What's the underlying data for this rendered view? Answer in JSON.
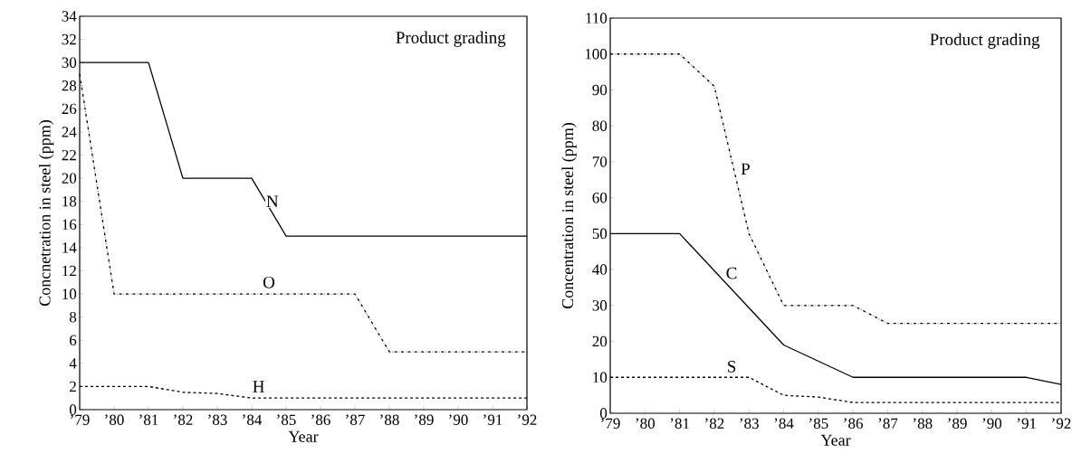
{
  "chart_data": [
    {
      "type": "line",
      "xlabel": "Year",
      "ylabel": "Concnetration in steel (ppm)",
      "xlim": [
        1979,
        1992
      ],
      "ylim": [
        0,
        34
      ],
      "xticks": [
        {
          "value": 1979,
          "label": "’79"
        },
        {
          "value": 1980,
          "label": "’80"
        },
        {
          "value": 1981,
          "label": "’81"
        },
        {
          "value": 1982,
          "label": "’82"
        },
        {
          "value": 1983,
          "label": "’83"
        },
        {
          "value": 1984,
          "label": "’84"
        },
        {
          "value": 1985,
          "label": "’85"
        },
        {
          "value": 1986,
          "label": "’86"
        },
        {
          "value": 1987,
          "label": "’87"
        },
        {
          "value": 1988,
          "label": "’88"
        },
        {
          "value": 1989,
          "label": "’89"
        },
        {
          "value": 1990,
          "label": "’90"
        },
        {
          "value": 1991,
          "label": "’91"
        },
        {
          "value": 1992,
          "label": "’92"
        }
      ],
      "yticks": [
        0,
        2,
        4,
        6,
        8,
        10,
        12,
        14,
        16,
        18,
        20,
        22,
        24,
        26,
        28,
        30,
        32,
        34
      ],
      "annotations": [
        "Product grading",
        {
          "text": "N",
          "x": 1984.6,
          "y": 18
        },
        {
          "text": "O",
          "x": 1984.5,
          "y": 11
        },
        {
          "text": "H",
          "x": 1984.2,
          "y": 2
        }
      ],
      "series": [
        {
          "color": "#000000",
          "line_style": "solid",
          "x": [
            1979,
            1981,
            1982,
            1984,
            1985,
            1992
          ],
          "values": [
            30,
            30,
            20,
            20,
            15,
            15
          ]
        },
        {
          "color": "#000000",
          "line_style": "dashed",
          "x": [
            1979,
            1980,
            1987,
            1988,
            1992
          ],
          "values": [
            29,
            10,
            10,
            5,
            5
          ]
        },
        {
          "color": "#000000",
          "line_style": "dotted",
          "x": [
            1979,
            1981,
            1982,
            1983,
            1984,
            1992
          ],
          "values": [
            2,
            2,
            1.5,
            1.4,
            1,
            1
          ]
        }
      ]
    },
    {
      "type": "line",
      "xlabel": "Year",
      "ylabel": "Concentration in steel (ppm)",
      "xlim": [
        1979,
        1992
      ],
      "ylim": [
        0,
        110
      ],
      "xticks": [
        {
          "value": 1979,
          "label": "’79"
        },
        {
          "value": 1980,
          "label": "’80"
        },
        {
          "value": 1981,
          "label": "’81"
        },
        {
          "value": 1982,
          "label": "’82"
        },
        {
          "value": 1983,
          "label": "’83"
        },
        {
          "value": 1984,
          "label": "’84"
        },
        {
          "value": 1985,
          "label": "’85"
        },
        {
          "value": 1986,
          "label": "’86"
        },
        {
          "value": 1987,
          "label": "’87"
        },
        {
          "value": 1988,
          "label": "’88"
        },
        {
          "value": 1989,
          "label": "’89"
        },
        {
          "value": 1990,
          "label": "’90"
        },
        {
          "value": 1991,
          "label": "’91"
        },
        {
          "value": 1992,
          "label": "’92"
        }
      ],
      "yticks": [
        0,
        10,
        20,
        30,
        40,
        50,
        60,
        70,
        80,
        90,
        100,
        110
      ],
      "annotations": [
        "Product grading",
        {
          "text": "P",
          "x": 1982.9,
          "y": 68
        },
        {
          "text": "C",
          "x": 1982.5,
          "y": 39
        },
        {
          "text": "S",
          "x": 1982.5,
          "y": 13
        }
      ],
      "series": [
        {
          "color": "#000000",
          "line_style": "dashed",
          "x": [
            1979,
            1981,
            1982,
            1983,
            1984,
            1986,
            1987,
            1992
          ],
          "values": [
            100,
            100,
            91,
            50,
            30,
            30,
            25,
            25
          ]
        },
        {
          "color": "#000000",
          "line_style": "solid",
          "x": [
            1979,
            1981,
            1984,
            1986,
            1991,
            1992
          ],
          "values": [
            50,
            50,
            19,
            10,
            10,
            8
          ]
        },
        {
          "color": "#000000",
          "line_style": "dotted",
          "x": [
            1979,
            1983,
            1984,
            1985,
            1986,
            1992
          ],
          "values": [
            10,
            10,
            5,
            4.5,
            3,
            3
          ]
        }
      ]
    }
  ]
}
